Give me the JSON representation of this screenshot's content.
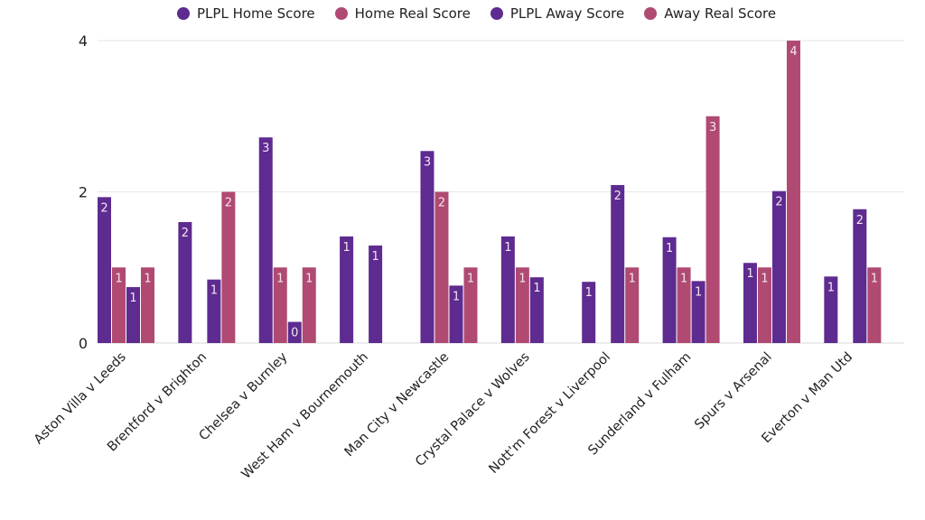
{
  "chart_data": {
    "type": "bar",
    "title": "",
    "xlabel": "",
    "ylabel": "",
    "ylim": [
      0,
      4
    ],
    "yticks": [
      "0",
      "2",
      "4"
    ],
    "grid": true,
    "legend_position": "top",
    "categories": [
      "Aston Villa v Leeds",
      "Brentford v Brighton",
      "Chelsea v Burnley",
      "West Ham v Bournemouth",
      "Man City v Newcastle",
      "Crystal Palace v Wolves",
      "Nott'm Forest v Liverpool",
      "Sunderland v Fulham",
      "Spurs v Arsenal",
      "Everton v Man Utd"
    ],
    "series": [
      {
        "name": "PLPL Home Score",
        "color": "#5e2b91",
        "values": [
          1.93,
          1.6,
          2.72,
          1.41,
          2.54,
          1.41,
          0.81,
          1.4,
          1.06,
          0.88
        ],
        "labels": [
          "2",
          "2",
          "3",
          "1",
          "3",
          "1",
          "1",
          "1",
          "1",
          "1"
        ]
      },
      {
        "name": "Home Real Score",
        "color": "#b04a72",
        "values": [
          1,
          0,
          1,
          0,
          2,
          1,
          0,
          1,
          1,
          0
        ],
        "labels": [
          "1",
          "",
          "1",
          "",
          "2",
          "1",
          "",
          "1",
          "1",
          ""
        ]
      },
      {
        "name": "PLPL Away Score",
        "color": "#5e2b91",
        "values": [
          0.74,
          0.84,
          0.28,
          1.29,
          0.76,
          0.87,
          2.09,
          0.82,
          2.01,
          1.77
        ],
        "labels": [
          "1",
          "1",
          "0",
          "1",
          "1",
          "1",
          "2",
          "1",
          "2",
          "2"
        ]
      },
      {
        "name": "Away Real Score",
        "color": "#b04a72",
        "values": [
          1,
          2,
          1,
          0,
          1,
          0,
          1,
          3,
          4,
          1
        ],
        "labels": [
          "1",
          "2",
          "1",
          "",
          "1",
          "",
          "1",
          "3",
          "4",
          "1"
        ]
      }
    ]
  }
}
